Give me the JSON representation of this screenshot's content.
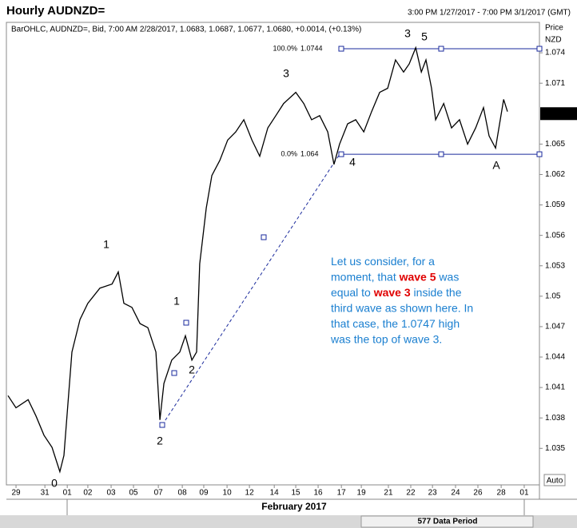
{
  "header": {
    "title": "Hourly AUDNZD=",
    "range": "3:00 PM 1/27/2017 - 7:00 PM 3/1/2017 (GMT)"
  },
  "chart_data": {
    "type": "line",
    "legend_text": "BarOHLC, AUDNZD=, Bid, 7:00 AM 2/28/2017, 1.0683, 1.0687, 1.0677, 1.0680, +0.0014, (+0.13%)",
    "y_axis_label": "Price",
    "y_axis_unit": "NZD",
    "x_axis_label": "February 2017",
    "footer": "577 Data Period",
    "scale_mode": "Auto",
    "color": "#000000",
    "x": [
      -0.36,
      0,
      0.54,
      0.89,
      1.25,
      1.61,
      1.96,
      2.14,
      2.5,
      2.86,
      3.21,
      3.75,
      4.29,
      4.57,
      4.82,
      5.18,
      5.54,
      5.89,
      6.25,
      6.43,
      6.61,
      6.96,
      7.32,
      7.57,
      7.86,
      8.07,
      8.21,
      8.5,
      8.75,
      9.11,
      9.46,
      9.82,
      10.18,
      10.54,
      10.89,
      11.25,
      11.61,
      11.96,
      12.5,
      12.86,
      13.21,
      13.57,
      13.93,
      14.21,
      14.46,
      14.82,
      15.18,
      15.54,
      15.89,
      16.25,
      16.61,
      16.96,
      17.32,
      17.57,
      17.86,
      18.11,
      18.32,
      18.57,
      18.75,
      19.11,
      19.46,
      19.82,
      20.18,
      20.54,
      20.89,
      21.14,
      21.43,
      21.79,
      21.96
    ],
    "values": [
      1.0402,
      1.039,
      1.0398,
      1.0382,
      1.0363,
      1.0351,
      1.0327,
      1.0343,
      1.0445,
      1.0477,
      1.0493,
      1.0508,
      1.0512,
      1.0524,
      1.0493,
      1.0489,
      1.0473,
      1.0469,
      1.0445,
      1.0378,
      1.0414,
      1.0437,
      1.0445,
      1.0461,
      1.0437,
      1.0445,
      1.0532,
      1.0587,
      1.0619,
      1.0634,
      1.0654,
      1.0662,
      1.0674,
      1.0654,
      1.0638,
      1.0666,
      1.0678,
      1.069,
      1.0701,
      1.069,
      1.0674,
      1.0678,
      1.0662,
      1.063,
      1.065,
      1.067,
      1.0674,
      1.0662,
      1.0682,
      1.0701,
      1.0705,
      1.0733,
      1.0721,
      1.0729,
      1.0745,
      1.0721,
      1.0733,
      1.0705,
      1.0674,
      1.069,
      1.0666,
      1.0674,
      1.065,
      1.0666,
      1.0686,
      1.0658,
      1.0646,
      1.0694,
      1.0682
    ],
    "xlim": [
      -0.43,
      23.39
    ],
    "ylim": [
      1.0314,
      1.077
    ],
    "yticks": [
      1.035,
      1.038,
      1.041,
      1.044,
      1.047,
      1.05,
      1.053,
      1.056,
      1.059,
      1.062,
      1.065,
      1.071,
      1.074
    ],
    "xticks": [
      {
        "value": 0,
        "label": "29"
      },
      {
        "value": 1.29,
        "label": "31"
      },
      {
        "value": 2.29,
        "label": "01"
      },
      {
        "value": 3.21,
        "label": "02"
      },
      {
        "value": 4.25,
        "label": "03"
      },
      {
        "value": 5.25,
        "label": "05"
      },
      {
        "value": 6.36,
        "label": "07"
      },
      {
        "value": 7.43,
        "label": "08"
      },
      {
        "value": 8.39,
        "label": "09"
      },
      {
        "value": 9.43,
        "label": "10"
      },
      {
        "value": 10.43,
        "label": "12"
      },
      {
        "value": 11.54,
        "label": "14"
      },
      {
        "value": 12.5,
        "label": "15"
      },
      {
        "value": 13.5,
        "label": "16"
      },
      {
        "value": 14.54,
        "label": "17"
      },
      {
        "value": 15.43,
        "label": "19"
      },
      {
        "value": 16.64,
        "label": "21"
      },
      {
        "value": 17.64,
        "label": "22"
      },
      {
        "value": 18.61,
        "label": "23"
      },
      {
        "value": 19.64,
        "label": "24"
      },
      {
        "value": 20.64,
        "label": "26"
      },
      {
        "value": 21.68,
        "label": "28"
      },
      {
        "value": 22.71,
        "label": "01"
      }
    ],
    "last_price": {
      "value": 1.068,
      "label": "1.0680"
    },
    "fib_levels": [
      {
        "label": "100.0%",
        "value": 1.0744,
        "color": "#1a2a9c"
      },
      {
        "label": "0.0%",
        "value": 1.064,
        "color": "#1a2a9c"
      }
    ],
    "wave_labels": [
      {
        "text": "0",
        "color": "#1a7fd0"
      },
      {
        "text": "1",
        "color": "#1a7fd0"
      },
      {
        "text": "2",
        "color": "#1a7fd0"
      },
      {
        "text": "1",
        "color": "#e00000"
      },
      {
        "text": "2",
        "color": "#e00000"
      },
      {
        "text": "3",
        "color": "#e00000"
      },
      {
        "text": "4",
        "color": "#e00000"
      },
      {
        "text": "3",
        "color": "#1a7fd0"
      },
      {
        "text": "5",
        "color": "#e00000"
      },
      {
        "text": "A",
        "color": "#1a8a1a"
      }
    ],
    "note": [
      [
        {
          "text": "Let us consider, for a",
          "color": "#1a7fd0"
        }
      ],
      [
        {
          "text": "moment, that ",
          "color": "#1a7fd0"
        },
        {
          "text": "wave 5",
          "color": "#e00000"
        },
        {
          "text": " was",
          "color": "#1a7fd0"
        }
      ],
      [
        {
          "text": "equal to ",
          "color": "#1a7fd0"
        },
        {
          "text": "wave 3",
          "color": "#e00000"
        },
        {
          "text": " inside the",
          "color": "#1a7fd0"
        }
      ],
      [
        {
          "text": "third wave as shown here. In",
          "color": "#1a7fd0"
        }
      ],
      [
        {
          "text": "that case, the 1.0747 high",
          "color": "#1a7fd0"
        }
      ],
      [
        {
          "text": "was the top of wave 3.",
          "color": "#1a7fd0"
        }
      ]
    ]
  }
}
